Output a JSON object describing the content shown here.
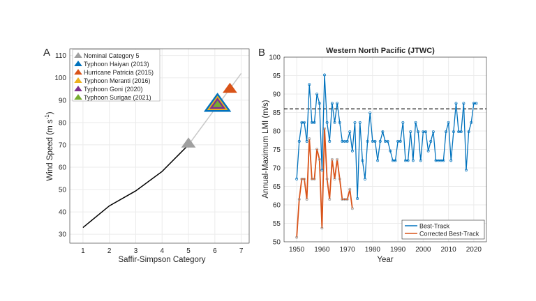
{
  "chart_data": [
    {
      "type": "line",
      "panel_label": "A",
      "xlabel": "Saffir-Simpson Category",
      "ylabel": "Wind Speed (m s",
      "ylabel_sup": "-1",
      "ylabel_end": ")",
      "xlim": [
        0.5,
        7.3
      ],
      "ylim": [
        26,
        113
      ],
      "xticks": [
        1,
        2,
        3,
        4,
        5,
        6,
        7
      ],
      "yticks": [
        30,
        40,
        50,
        60,
        70,
        80,
        90,
        100,
        110
      ],
      "grid": true,
      "legend_position": "top-left",
      "category_curve": {
        "x": [
          1,
          2,
          3,
          4,
          5
        ],
        "y": [
          33,
          42.7,
          49.4,
          58.1,
          70
        ],
        "color": "#000000"
      },
      "extrapolation": {
        "x": [
          5,
          7
        ],
        "y": [
          70,
          102
        ],
        "color": "#c8c8c8"
      },
      "storms": [
        {
          "name": "Nominal Category 5",
          "x": 5.0,
          "y": 70.5,
          "color": "#a0a0a0"
        },
        {
          "name": "Typhoon Haiyan (2013)",
          "x": 6.1,
          "y": 88,
          "color": "#0072bd"
        },
        {
          "name": "Hurricane Patricia (2015)",
          "x": 6.57,
          "y": 95,
          "color": "#d95319"
        },
        {
          "name": "Typhoon Meranti (2016)",
          "x": 6.1,
          "y": 88,
          "color": "#edb120"
        },
        {
          "name": "Typhoon Goni (2020)",
          "x": 6.1,
          "y": 88,
          "color": "#7e2f8e"
        },
        {
          "name": "Typhoon Surigae (2021)",
          "x": 6.1,
          "y": 88,
          "color": "#77ac30"
        }
      ]
    },
    {
      "type": "line",
      "panel_label": "B",
      "title": "Western North Pacific (JTWC)",
      "xlabel": "Year",
      "ylabel": "Annual-Maximum LMI (m/s)",
      "xlim": [
        1945,
        2025
      ],
      "ylim": [
        50,
        100
      ],
      "xticks": [
        1950,
        1960,
        1970,
        1980,
        1990,
        2000,
        2010,
        2020
      ],
      "yticks": [
        50,
        55,
        60,
        65,
        70,
        75,
        80,
        85,
        90,
        95,
        100
      ],
      "grid": true,
      "legend_position": "bottom-right",
      "threshold": {
        "y": 86,
        "style": "dashed",
        "color": "#000000"
      },
      "series": [
        {
          "name": "Best-Track",
          "color": "#0072bd",
          "x_start": 1950,
          "values": [
            67,
            77.2,
            82.3,
            82.3,
            77.2,
            92.6,
            82.3,
            82.3,
            90,
            87.5,
            69.4,
            95.2,
            82.3,
            77.2,
            87.5,
            82.3,
            87.5,
            82.3,
            77.2,
            77.2,
            77.2,
            79.8,
            74.6,
            82.3,
            61.7,
            82.3,
            72,
            67,
            77.2,
            84.9,
            77.2,
            77.2,
            72,
            77.2,
            79.8,
            77.2,
            77.2,
            74.6,
            72,
            72,
            77.2,
            77.2,
            82.3,
            72,
            72,
            79.8,
            72,
            82.3,
            79.8,
            72,
            79.8,
            79.8,
            74.6,
            77.2,
            79.8,
            72,
            72,
            72,
            72,
            79.8,
            82.3,
            72,
            79.8,
            87.5,
            79.8,
            79.8,
            87.5,
            69.4,
            79.8,
            82.3,
            87.5,
            87.5
          ]
        },
        {
          "name": "Corrected Best-Track",
          "color": "#d95319",
          "x_start": 1950,
          "values": [
            51.2,
            61.5,
            67,
            67,
            61.5,
            77.9,
            67,
            67,
            75.1,
            72.3,
            53.7,
            80.7,
            67,
            61.5,
            72.3,
            67,
            72.3,
            67,
            61.5,
            61.5,
            61.5,
            64.2,
            59
          ]
        }
      ]
    }
  ]
}
